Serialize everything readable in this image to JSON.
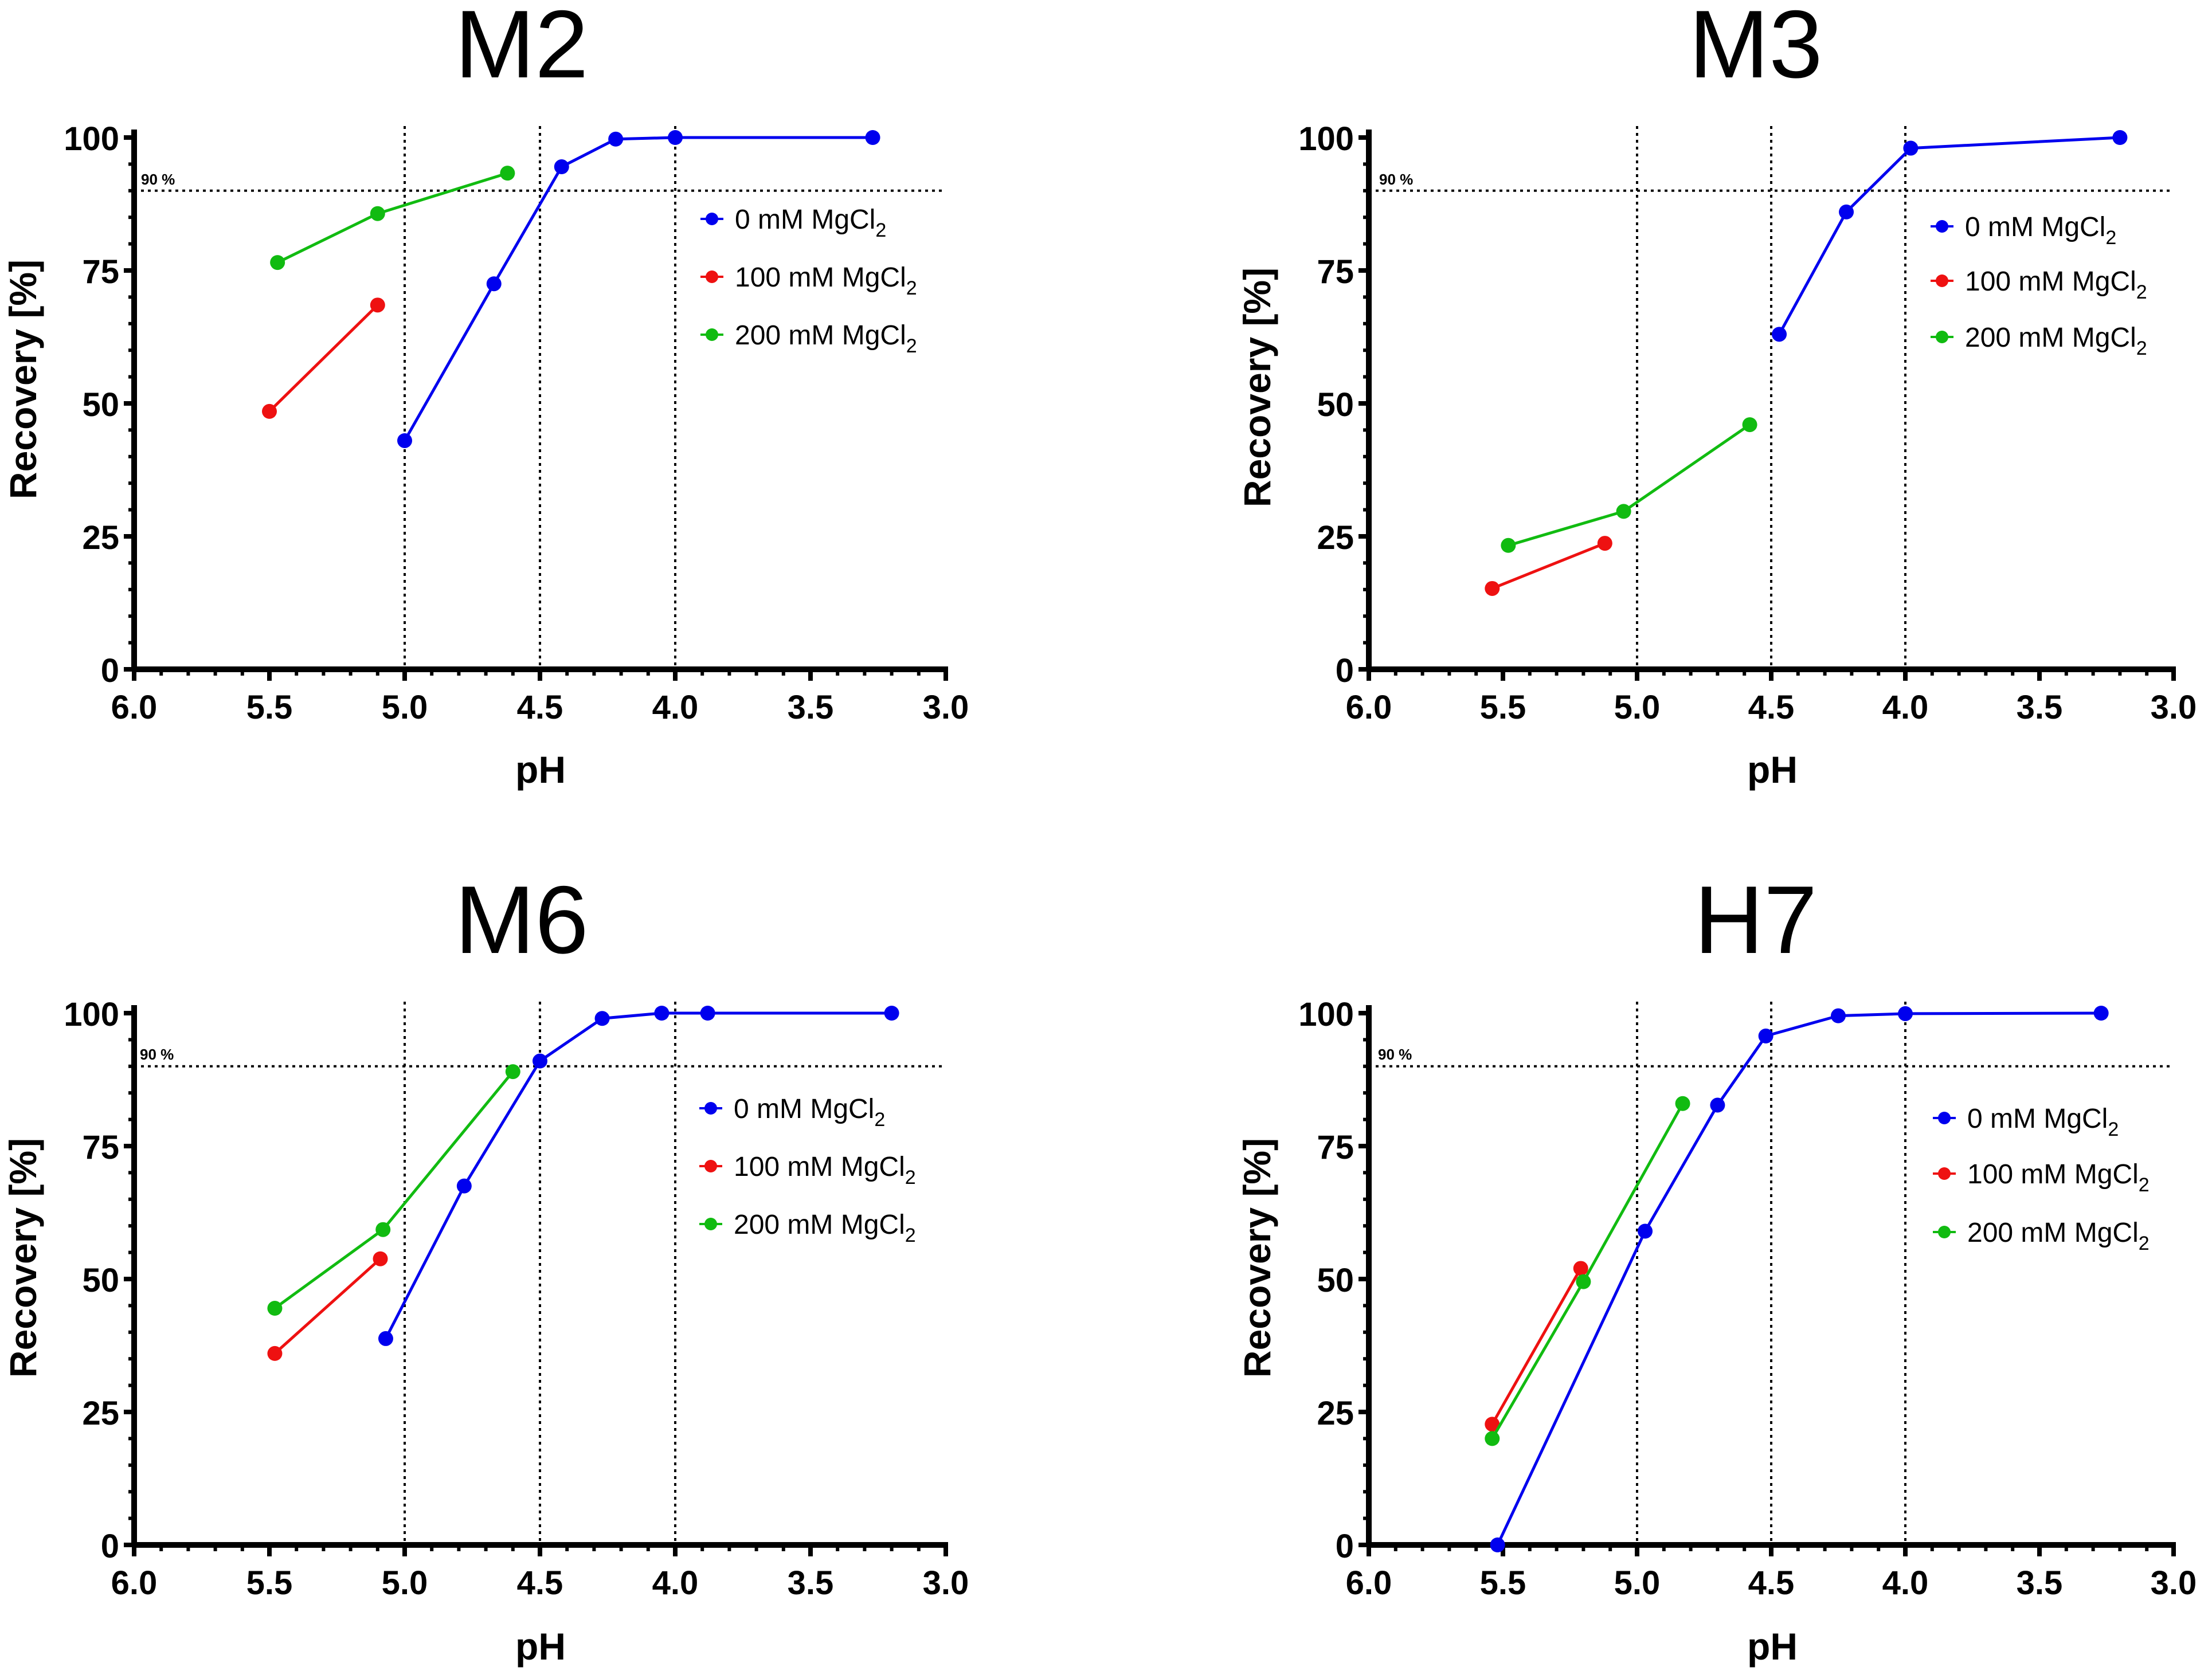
{
  "chart_data": [
    {
      "type": "line",
      "title": "M2",
      "xlabel": "pH",
      "ylabel": "Recovery [%]",
      "xlim": [
        6.0,
        3.0
      ],
      "ylim": [
        0,
        100
      ],
      "xticks": [
        "6.0",
        "5.5",
        "5.0",
        "4.5",
        "4.0",
        "3.5",
        "3.0"
      ],
      "yticks": [
        "0",
        "25",
        "50",
        "75",
        "100"
      ],
      "ref_label": "90 %",
      "hline": 90,
      "vlines": [
        5.0,
        4.5,
        4.0
      ],
      "legend": [
        "0 mM MgCl",
        "100 mM MgCl",
        "200 mM MgCl"
      ],
      "legend_sub": "2",
      "series": [
        {
          "name": "0 mM MgCl2",
          "color": "#0000ee",
          "x": [
            5.0,
            4.67,
            4.42,
            4.22,
            4.0,
            3.27
          ],
          "y": [
            43,
            72.5,
            94.5,
            99.7,
            100,
            100
          ]
        },
        {
          "name": "100 mM MgCl2",
          "color": "#ee1111",
          "x": [
            5.5,
            5.1
          ],
          "y": [
            48.5,
            68.5
          ]
        },
        {
          "name": "200 mM MgCl2",
          "color": "#11bb11",
          "x": [
            5.47,
            5.1,
            4.62
          ],
          "y": [
            76.5,
            85.7,
            93.3
          ]
        }
      ]
    },
    {
      "type": "line",
      "title": "M3",
      "xlabel": "pH",
      "ylabel": "Recovery [%]",
      "xlim": [
        6.0,
        3.0
      ],
      "ylim": [
        0,
        100
      ],
      "xticks": [
        "6.0",
        "5.5",
        "5.0",
        "4.5",
        "4.0",
        "3.5",
        "3.0"
      ],
      "yticks": [
        "0",
        "25",
        "50",
        "75",
        "100"
      ],
      "ref_label": "90 %",
      "hline": 90,
      "vlines": [
        5.0,
        4.5,
        4.0
      ],
      "legend": [
        "0 mM MgCl",
        "100 mM MgCl",
        "200 mM MgCl"
      ],
      "legend_sub": "2",
      "series": [
        {
          "name": "0 mM MgCl2",
          "color": "#0000ee",
          "x": [
            4.47,
            4.22,
            3.98,
            3.2
          ],
          "y": [
            63,
            86,
            98,
            100
          ]
        },
        {
          "name": "100 mM MgCl2",
          "color": "#ee1111",
          "x": [
            5.54,
            5.12
          ],
          "y": [
            15.2,
            23.7
          ]
        },
        {
          "name": "200 mM MgCl2",
          "color": "#11bb11",
          "x": [
            5.48,
            5.05,
            4.58
          ],
          "y": [
            23.3,
            29.7,
            46
          ]
        }
      ]
    },
    {
      "type": "line",
      "title": "M6",
      "xlabel": "pH",
      "ylabel": "Recovery [%]",
      "xlim": [
        6.0,
        3.0
      ],
      "ylim": [
        0,
        100
      ],
      "xticks": [
        "6.0",
        "5.5",
        "5.0",
        "4.5",
        "4.0",
        "3.5",
        "3.0"
      ],
      "yticks": [
        "0",
        "25",
        "50",
        "75",
        "100"
      ],
      "ref_label": "90 %",
      "hline": 90,
      "vlines": [
        5.0,
        4.5,
        4.0
      ],
      "legend": [
        "0 mM MgCl",
        "100 mM MgCl",
        "200 mM MgCl"
      ],
      "legend_sub": "2",
      "series": [
        {
          "name": "0 mM MgCl2",
          "color": "#0000ee",
          "x": [
            5.07,
            4.78,
            4.5,
            4.27,
            4.05,
            3.88,
            3.2
          ],
          "y": [
            38.8,
            67.5,
            91,
            99,
            100,
            100,
            100
          ]
        },
        {
          "name": "100 mM MgCl2",
          "color": "#ee1111",
          "x": [
            5.48,
            5.09
          ],
          "y": [
            36,
            53.8
          ]
        },
        {
          "name": "200 mM MgCl2",
          "color": "#11bb11",
          "x": [
            5.48,
            5.08,
            4.6
          ],
          "y": [
            44.5,
            59.3,
            89
          ]
        }
      ]
    },
    {
      "type": "line",
      "title": "H7",
      "xlabel": "pH",
      "ylabel": "Recovery [%]",
      "xlim": [
        6.0,
        3.0
      ],
      "ylim": [
        0,
        100
      ],
      "xticks": [
        "6.0",
        "5.5",
        "5.0",
        "4.5",
        "4.0",
        "3.5",
        "3.0"
      ],
      "yticks": [
        "0",
        "25",
        "50",
        "75",
        "100"
      ],
      "ref_label": "90 %",
      "hline": 90,
      "vlines": [
        5.0,
        4.5,
        4.0
      ],
      "legend": [
        "0 mM MgCl",
        "100 mM MgCl",
        "200 mM MgCl"
      ],
      "legend_sub": "2",
      "series": [
        {
          "name": "0 mM MgCl2",
          "color": "#0000ee",
          "x": [
            5.52,
            4.97,
            4.7,
            4.52,
            4.25,
            4.0,
            3.27
          ],
          "y": [
            0,
            59,
            82.7,
            95.7,
            99.5,
            99.9,
            100
          ]
        },
        {
          "name": "100 mM MgCl2",
          "color": "#ee1111",
          "x": [
            5.54,
            5.21
          ],
          "y": [
            22.7,
            52
          ]
        },
        {
          "name": "200 mM MgCl2",
          "color": "#11bb11",
          "x": [
            5.54,
            5.2,
            4.83
          ],
          "y": [
            20,
            49.5,
            83
          ]
        }
      ]
    }
  ]
}
